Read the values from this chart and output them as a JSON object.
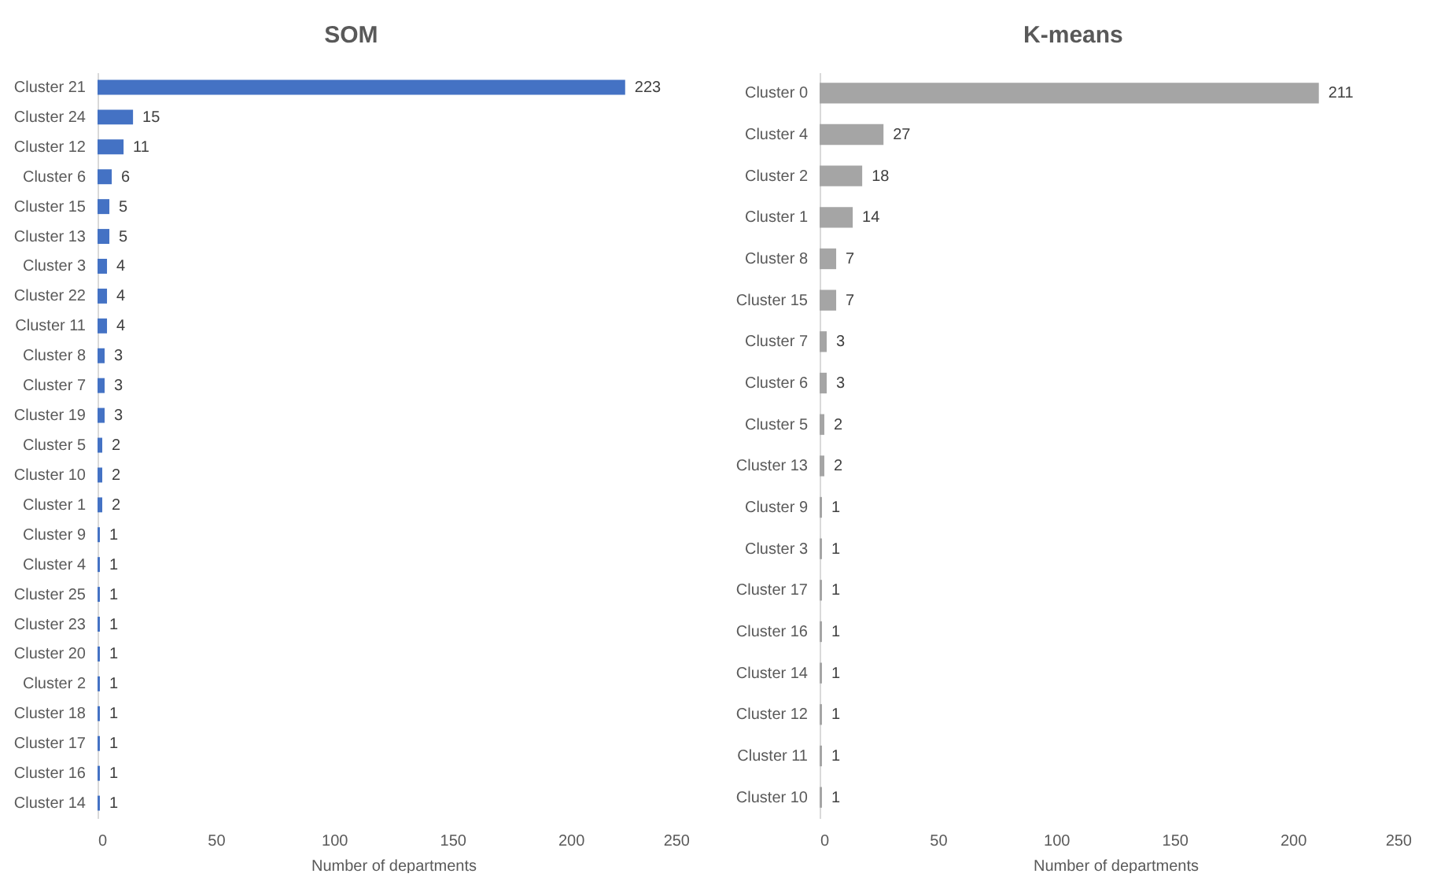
{
  "chart_data": [
    {
      "type": "bar",
      "title": "SOM",
      "orientation": "horizontal",
      "xlabel": "Number of departments",
      "color": "#4472c4",
      "data_labels": true,
      "xlim": [
        0,
        250
      ],
      "xticks": [
        0,
        50,
        100,
        150,
        200,
        250
      ],
      "categories": [
        "Cluster 21",
        "Cluster 24",
        "Cluster 12",
        "Cluster 6",
        "Cluster 15",
        "Cluster 13",
        "Cluster 3",
        "Cluster 22",
        "Cluster 11",
        "Cluster 8",
        "Cluster 7",
        "Cluster 19",
        "Cluster 5",
        "Cluster 10",
        "Cluster 1",
        "Cluster 9",
        "Cluster 4",
        "Cluster 25",
        "Cluster 23",
        "Cluster 20",
        "Cluster 2",
        "Cluster 18",
        "Cluster 17",
        "Cluster 16",
        "Cluster 14"
      ],
      "values": [
        223,
        15,
        11,
        6,
        5,
        5,
        4,
        4,
        4,
        3,
        3,
        3,
        2,
        2,
        2,
        1,
        1,
        1,
        1,
        1,
        1,
        1,
        1,
        1,
        1
      ]
    },
    {
      "type": "bar",
      "title": "K-means",
      "orientation": "horizontal",
      "xlabel": "Number of departments",
      "color": "#a5a5a5",
      "data_labels": true,
      "xlim": [
        0,
        250
      ],
      "xticks": [
        0,
        50,
        100,
        150,
        200,
        250
      ],
      "categories": [
        "Cluster 0",
        "Cluster 4",
        "Cluster 2",
        "Cluster 1",
        "Cluster 8",
        "Cluster 15",
        "Cluster 7",
        "Cluster 6",
        "Cluster 5",
        "Cluster 13",
        "Cluster 9",
        "Cluster 3",
        "Cluster 17",
        "Cluster 16",
        "Cluster 14",
        "Cluster 12",
        "Cluster 11",
        "Cluster 10"
      ],
      "values": [
        211,
        27,
        18,
        14,
        7,
        7,
        3,
        3,
        2,
        2,
        1,
        1,
        1,
        1,
        1,
        1,
        1,
        1
      ]
    }
  ]
}
